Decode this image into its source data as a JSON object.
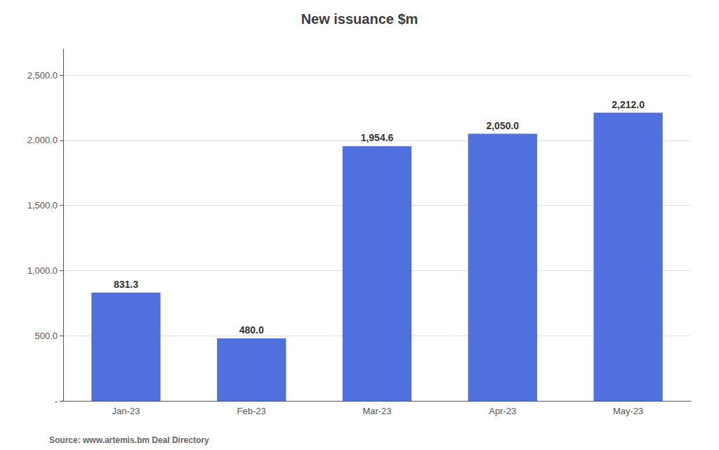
{
  "chart_data": {
    "type": "bar",
    "title": "New issuance $m",
    "categories": [
      "Jan-23",
      "Feb-23",
      "Mar-23",
      "Apr-23",
      "May-23"
    ],
    "values": [
      831.3,
      480.0,
      1954.6,
      2050.0,
      2212.0
    ],
    "value_labels": [
      "831.3",
      "480.0",
      "1,954.6",
      "2,050.0",
      "2,212.0"
    ],
    "data_labels": true,
    "ylim": [
      0,
      2700
    ],
    "yticks": [
      {
        "value": 0,
        "label": "-"
      },
      {
        "value": 500,
        "label": "500.0"
      },
      {
        "value": 1000,
        "label": "1,000.0"
      },
      {
        "value": 1500,
        "label": "1,500.0"
      },
      {
        "value": 2000,
        "label": "2,000.0"
      },
      {
        "value": 2500,
        "label": "2,500.0"
      }
    ],
    "grid": true,
    "annotations": [
      "Source: www.artemis.bm Deal Directory"
    ]
  }
}
